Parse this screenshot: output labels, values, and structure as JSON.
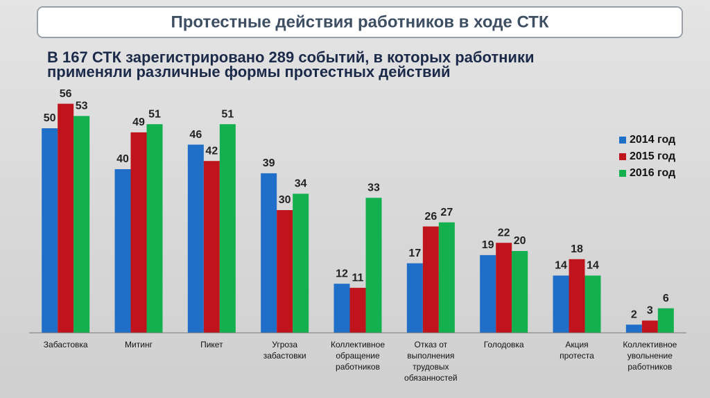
{
  "chart_data": {
    "type": "bar",
    "title": "Протестные действия работников в ходе СТК",
    "subtitle": "В 167 СТК зарегистрировано 289 событий, в которых работники\nприменяли различные формы протестных действий",
    "categories": [
      "Забастовка",
      "Митинг",
      "Пикет",
      "Угроза\nзабастовки",
      "Коллективное\nобращение\nработников",
      "Отказ от\nвыполнения\nтрудовых\nобязанностей",
      "Голодовка",
      "Акция\nпротеста",
      "Коллективное\nувольнение\nработников"
    ],
    "series": [
      {
        "name": "2014 год",
        "color": "#1f6fc9",
        "values": [
          50,
          40,
          46,
          39,
          12,
          17,
          19,
          14,
          2
        ]
      },
      {
        "name": "2015 год",
        "color": "#c0141c",
        "values": [
          56,
          49,
          42,
          30,
          11,
          26,
          22,
          18,
          3
        ]
      },
      {
        "name": "2016 год",
        "color": "#14b050",
        "values": [
          53,
          51,
          51,
          34,
          33,
          27,
          20,
          14,
          6
        ]
      }
    ],
    "ylim": [
      0,
      60
    ],
    "legend": "right"
  }
}
